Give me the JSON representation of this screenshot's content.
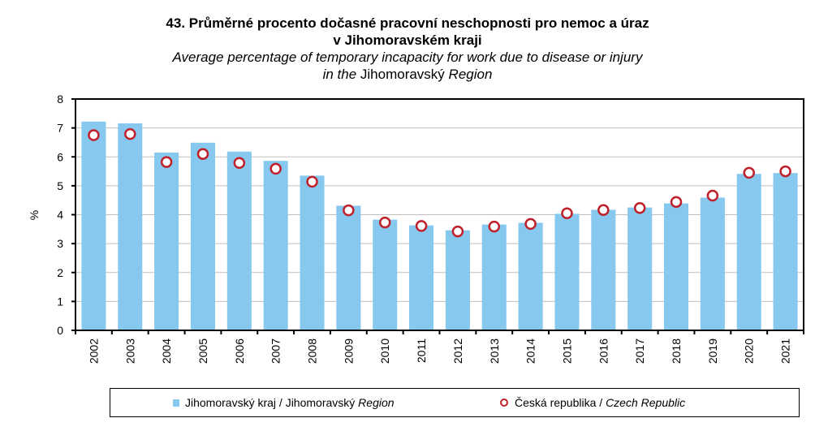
{
  "title": {
    "cz_line1": "43. Průměrné procento dočasné pracovní neschopnosti pro nemoc a úraz",
    "cz_line2": "v Jihomoravském kraji",
    "en_line1": "Average percentage of temporary incapacity for work due to disease or injury",
    "en_line2_prefix": "in the ",
    "en_line2_region": "Jihomoravský",
    "en_line2_suffix": " Region"
  },
  "legend": {
    "bar_label_cz": "Jihomoravský kraj / Jihomoravský ",
    "bar_label_en": "Region",
    "dot_label_cz": "Česká republika / ",
    "dot_label_en": "Czech Republic"
  },
  "colors": {
    "bar": "#87C8EF",
    "marker_stroke": "#C0202A",
    "marker_fill": "#FFFFFF",
    "grid": "#BFBFBF",
    "axis": "#000000"
  },
  "chart_data": {
    "type": "bar",
    "title": "43. Průměrné procento dočasné pracovní neschopnosti pro nemoc a úraz v Jihomoravském kraji / Average percentage of temporary incapacity for work due to disease or injury in the Jihomoravský Region",
    "xlabel": "",
    "ylabel": "%",
    "ylim": [
      0,
      8
    ],
    "yticks": [
      0,
      1,
      2,
      3,
      4,
      5,
      6,
      7,
      8
    ],
    "grid": true,
    "legend_position": "bottom",
    "categories": [
      "2002",
      "2003",
      "2004",
      "2005",
      "2006",
      "2007",
      "2008",
      "2009",
      "2010",
      "2011",
      "2012",
      "2013",
      "2014",
      "2015",
      "2016",
      "2017",
      "2018",
      "2019",
      "2020",
      "2021"
    ],
    "series": [
      {
        "name": "Jihomoravský kraj / Jihomoravský Region",
        "type": "bar",
        "values": [
          7.22,
          7.16,
          6.15,
          6.49,
          6.18,
          5.86,
          5.35,
          4.31,
          3.83,
          3.63,
          3.46,
          3.66,
          3.72,
          4.03,
          4.17,
          4.25,
          4.39,
          4.59,
          5.41,
          5.44
        ]
      },
      {
        "name": "Česká republika / Czech Republic",
        "type": "scatter",
        "values": [
          6.75,
          6.79,
          5.82,
          6.1,
          5.79,
          5.59,
          5.14,
          4.15,
          3.73,
          3.61,
          3.42,
          3.59,
          3.68,
          4.05,
          4.16,
          4.23,
          4.44,
          4.66,
          5.45,
          5.5
        ]
      }
    ]
  }
}
